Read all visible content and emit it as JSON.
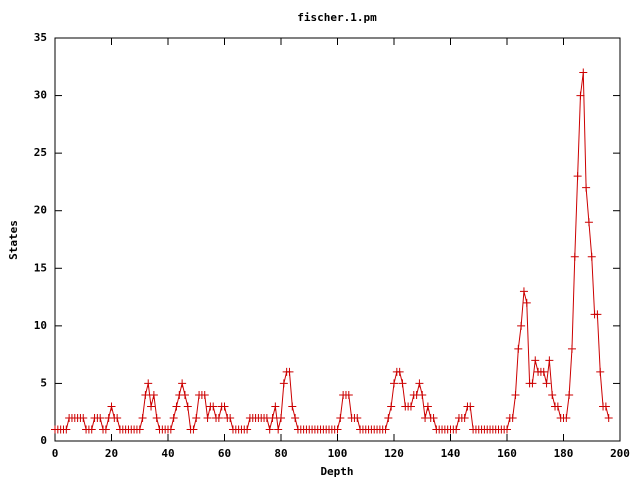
{
  "chart_data": {
    "type": "line",
    "title": "fischer.1.pm",
    "xlabel": "Depth",
    "ylabel": "States",
    "x": [
      0,
      1,
      2,
      3,
      4,
      5,
      6,
      7,
      8,
      9,
      10,
      11,
      12,
      13,
      14,
      15,
      16,
      17,
      18,
      19,
      20,
      21,
      22,
      23,
      24,
      25,
      26,
      27,
      28,
      29,
      30,
      31,
      32,
      33,
      34,
      35,
      36,
      37,
      38,
      39,
      40,
      41,
      42,
      43,
      44,
      45,
      46,
      47,
      48,
      49,
      50,
      51,
      52,
      53,
      54,
      55,
      56,
      57,
      58,
      59,
      60,
      61,
      62,
      63,
      64,
      65,
      66,
      67,
      68,
      69,
      70,
      71,
      72,
      73,
      74,
      75,
      76,
      77,
      78,
      79,
      80,
      81,
      82,
      83,
      84,
      85,
      86,
      87,
      88,
      89,
      90,
      91,
      92,
      93,
      94,
      95,
      96,
      97,
      98,
      99,
      100,
      101,
      102,
      103,
      104,
      105,
      106,
      107,
      108,
      109,
      110,
      111,
      112,
      113,
      114,
      115,
      116,
      117,
      118,
      119,
      120,
      121,
      122,
      123,
      124,
      125,
      126,
      127,
      128,
      129,
      130,
      131,
      132,
      133,
      134,
      135,
      136,
      137,
      138,
      139,
      140,
      141,
      142,
      143,
      144,
      145,
      146,
      147,
      148,
      149,
      150,
      151,
      152,
      153,
      154,
      155,
      156,
      157,
      158,
      159,
      160,
      161,
      162,
      163,
      164,
      165,
      166,
      167,
      168,
      169,
      170,
      171,
      172,
      173,
      174,
      175,
      176,
      177,
      178,
      179,
      180,
      181,
      182,
      183,
      184,
      185,
      186,
      187,
      188,
      189,
      190,
      191,
      192,
      193,
      194,
      195,
      196
    ],
    "series": [
      {
        "name": null,
        "color": "#cc0000",
        "values": [
          1,
          1,
          1,
          1,
          1,
          2,
          2,
          2,
          2,
          2,
          2,
          1,
          1,
          1,
          2,
          2,
          2,
          1,
          1,
          2,
          3,
          2,
          2,
          1,
          1,
          1,
          1,
          1,
          1,
          1,
          1,
          2,
          4,
          5,
          3,
          4,
          2,
          1,
          1,
          1,
          1,
          1,
          2,
          3,
          4,
          5,
          4,
          3,
          1,
          1,
          2,
          4,
          4,
          4,
          2,
          3,
          3,
          2,
          2,
          3,
          3,
          2,
          2,
          1,
          1,
          1,
          1,
          1,
          1,
          2,
          2,
          2,
          2,
          2,
          2,
          2,
          1,
          2,
          3,
          1,
          2,
          5,
          6,
          6,
          3,
          2,
          1,
          1,
          1,
          1,
          1,
          1,
          1,
          1,
          1,
          1,
          1,
          1,
          1,
          1,
          1,
          2,
          4,
          4,
          4,
          2,
          2,
          2,
          1,
          1,
          1,
          1,
          1,
          1,
          1,
          1,
          1,
          1,
          2,
          3,
          5,
          6,
          6,
          5,
          3,
          3,
          3,
          4,
          4,
          5,
          4,
          2,
          3,
          2,
          2,
          1,
          1,
          1,
          1,
          1,
          1,
          1,
          1,
          2,
          2,
          2,
          3,
          3,
          1,
          1,
          1,
          1,
          1,
          1,
          1,
          1,
          1,
          1,
          1,
          1,
          1,
          2,
          2,
          4,
          8,
          10,
          13,
          12,
          5,
          5,
          7,
          6,
          6,
          6,
          5,
          7,
          4,
          3,
          3,
          2,
          2,
          2,
          4,
          8,
          16,
          23,
          30,
          32,
          22,
          19,
          16,
          11,
          11,
          6,
          3,
          3,
          2
        ]
      }
    ],
    "xlim": [
      0,
      200
    ],
    "xticks": [
      0,
      20,
      40,
      60,
      80,
      100,
      120,
      140,
      160,
      180,
      200
    ],
    "ylim": [
      0,
      35
    ],
    "yticks": [
      0,
      5,
      10,
      15,
      20,
      25,
      30,
      35
    ],
    "grid": false
  }
}
